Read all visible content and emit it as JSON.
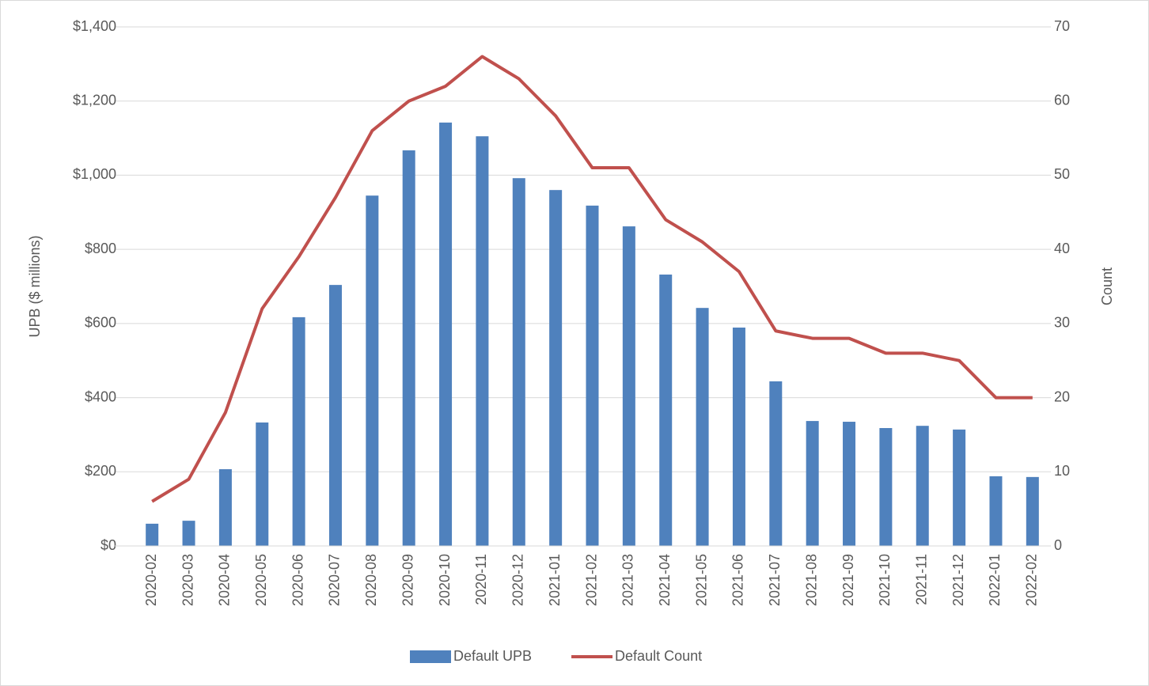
{
  "chart_data": {
    "type": "bar-line",
    "y_label": "UPB ($ millions)",
    "y2_label": "Count",
    "categories": [
      "2020-02",
      "2020-03",
      "2020-04",
      "2020-05",
      "2020-06",
      "2020-07",
      "2020-08",
      "2020-09",
      "2020-10",
      "2020-11",
      "2020-12",
      "2021-01",
      "2021-02",
      "2021-03",
      "2021-04",
      "2021-05",
      "2021-06",
      "2021-07",
      "2021-08",
      "2021-09",
      "2021-10",
      "2021-11",
      "2021-12",
      "2022-01",
      "2022-02"
    ],
    "series": [
      {
        "name": "Default UPB",
        "type": "bar",
        "color": "#4f81bd",
        "values": [
          60,
          68,
          207,
          333,
          617,
          704,
          945,
          1067,
          1142,
          1105,
          992,
          960,
          918,
          862,
          732,
          642,
          589,
          444,
          337,
          335,
          318,
          324,
          314,
          188,
          186
        ]
      },
      {
        "name": "Default Count",
        "type": "line",
        "axis": "y2",
        "color": "#c0504d",
        "values": [
          6,
          9,
          18,
          32,
          39,
          47,
          56,
          60,
          62,
          66,
          63,
          58,
          51,
          51,
          44,
          41,
          37,
          29,
          28,
          28,
          26,
          26,
          25,
          20,
          20
        ]
      }
    ],
    "ylim": [
      0,
      1400
    ],
    "yticks": [
      {
        "value": 0,
        "label": "$0"
      },
      {
        "value": 200,
        "label": "$200"
      },
      {
        "value": 400,
        "label": "$400"
      },
      {
        "value": 600,
        "label": "$600"
      },
      {
        "value": 800,
        "label": "$800"
      },
      {
        "value": 1000,
        "label": "$1,000"
      },
      {
        "value": 1200,
        "label": "$1,200"
      },
      {
        "value": 1400,
        "label": "$1,400"
      }
    ],
    "y2lim": [
      0,
      70
    ],
    "y2ticks": [
      0,
      10,
      20,
      30,
      40,
      50,
      60,
      70
    ],
    "grid": true,
    "legend": "bottom"
  }
}
